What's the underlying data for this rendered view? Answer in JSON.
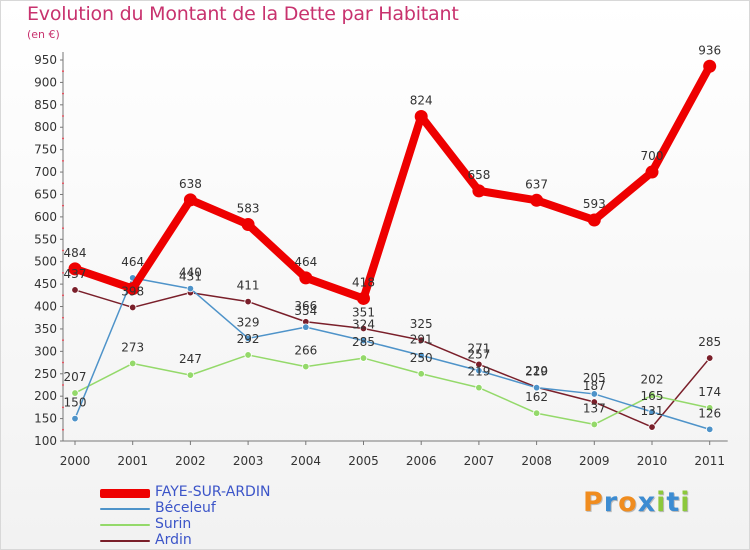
{
  "title": "Evolution du Montant de la Dette par Habitant",
  "subtitle": "(en €)",
  "logo": {
    "letters": [
      "P",
      "r",
      "o",
      "x",
      "i",
      "t",
      "i"
    ],
    "colors": [
      "#f08c1e",
      "#3c8cd2",
      "#f08c1e",
      "#3c8cd2",
      "#8cc83c",
      "#3c8cd2",
      "#8cc83c"
    ]
  },
  "chart_data": {
    "type": "line",
    "title": "Evolution du Montant de la Dette par Habitant",
    "ylabel": "(en €)",
    "xlabel": "",
    "x": [
      "2000",
      "2001",
      "2002",
      "2003",
      "2004",
      "2005",
      "2006",
      "2007",
      "2008",
      "2009",
      "2010",
      "2011"
    ],
    "yticks": [
      100,
      150,
      200,
      250,
      300,
      350,
      400,
      450,
      500,
      550,
      600,
      650,
      700,
      750,
      800,
      850,
      900,
      950
    ],
    "ylim": [
      100,
      950
    ],
    "grid": false,
    "legend": "bottom-left",
    "series": [
      {
        "name": "FAYE-SUR-ARDIN",
        "color": "#ee0000",
        "values": [
          484,
          440,
          638,
          583,
          464,
          418,
          824,
          658,
          637,
          593,
          700,
          936
        ],
        "labels": [
          "484",
          "",
          "638",
          "583",
          "464",
          "418",
          "824",
          "658",
          "637",
          "593",
          "700",
          "936"
        ]
      },
      {
        "name": "Béceleuf",
        "color": "#4e93c9",
        "values": [
          150,
          464,
          440,
          329,
          354,
          324,
          291,
          257,
          219,
          205,
          165,
          126
        ],
        "labels": [
          "150",
          "464",
          "440",
          "329",
          "354",
          "324",
          "291",
          "257",
          "219",
          "205",
          "165",
          "126"
        ]
      },
      {
        "name": "Surin",
        "color": "#94d96a",
        "values": [
          207,
          273,
          247,
          292,
          266,
          285,
          250,
          219,
          162,
          137,
          202,
          174
        ],
        "labels": [
          "207",
          "273",
          "247",
          "292",
          "266",
          "285",
          "250",
          "219",
          "162",
          "137",
          "202",
          "174"
        ]
      },
      {
        "name": "Ardin",
        "color": "#7a1f2a",
        "values": [
          437,
          398,
          431,
          411,
          366,
          351,
          325,
          271,
          220,
          187,
          131,
          285
        ],
        "labels": [
          "437",
          "398",
          "431",
          "411",
          "366",
          "351",
          "325",
          "271",
          "220",
          "187",
          "131",
          "285"
        ]
      }
    ]
  }
}
